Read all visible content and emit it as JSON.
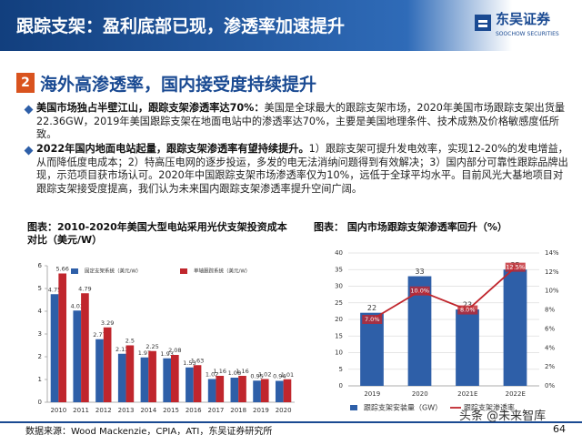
{
  "header": {
    "title": "跟踪支架：盈利底部已现，渗透率加速提升",
    "logo": "东吴证券",
    "logo_en": "SOOCHOW SECURITIES"
  },
  "section": {
    "number": "2",
    "title": "海外高渗透率，国内接受度持续提升"
  },
  "bullets": [
    {
      "bold": "美国市场独占半壁江山，跟踪支架渗透率达70%：",
      "text": "美国是全球最大的跟踪支架市场，2020年美国市场跟踪支架出货量22.36GW，2019年美国跟踪支架在地面电站中的渗透率达70%，主要是美国地理条件、技术成熟及价格敏感度低所致。"
    },
    {
      "bold": "2022年国内地面电站起量，跟踪支架渗透率有望持续提升。",
      "text": "1）跟踪支架可提升发电效率，实现12-20%的发电增益，从而降低度电成本；2）特高压电网的逐步投运，多发的电无法消纳问题得到有效解决；3）国内部分可靠性跟踪品牌出现，示范项目获市场认可。2020年中国跟踪支架市场渗透率仅为10%，远低于全球平均水平。目前风光大基地项目对跟踪支架接受度提高，我们认为未来国内跟踪支架渗透率提升空间广阔。"
    }
  ],
  "chart_data": [
    {
      "type": "bar",
      "title": "图表：2010-2020年美国大型电站采用光伏支架投资成本对比（美元/W）",
      "categories": [
        "2010",
        "2011",
        "2012",
        "2013",
        "2014",
        "2015",
        "2016",
        "2017",
        "2018",
        "2019",
        "2020"
      ],
      "series": [
        {
          "name": "固定支架系统（美元/W）",
          "color": "#2e5fa8",
          "values": [
            4.75,
            4.03,
            2.77,
            2.13,
            1.97,
            1.93,
            1.53,
            1.02,
            1.08,
            0.95,
            0.94
          ]
        },
        {
          "name": "单轴跟踪系统（美元/W）",
          "color": "#c0262d",
          "values": [
            5.66,
            4.79,
            3.29,
            2.5,
            2.25,
            2.08,
            1.63,
            1.16,
            1.16,
            1.02,
            1.01
          ]
        }
      ],
      "ylim": [
        0,
        6
      ],
      "yticks": [
        0,
        1,
        2,
        3,
        4,
        5,
        6
      ],
      "grid": false
    },
    {
      "type": "combo",
      "title": "图表： 国内市场跟踪支架渗透率回升（%）",
      "categories": [
        "2019",
        "2020",
        "2021E",
        "2022E"
      ],
      "series": [
        {
          "name": "跟踪支架安装量（GW）",
          "color": "#2e5fa8",
          "type": "bar",
          "values": [
            22,
            33,
            23,
            35
          ]
        },
        {
          "name": "跟踪支架渗透率",
          "color": "#c0262d",
          "type": "line",
          "axis": "y2",
          "values": [
            7.0,
            10.0,
            8.0,
            12.5
          ],
          "value_labels": [
            "7.0%",
            "10.0%",
            "8.0%",
            "12.5%"
          ]
        }
      ],
      "ylim": [
        0,
        40
      ],
      "yticks": [
        0,
        5,
        10,
        15,
        20,
        25,
        30,
        35,
        40
      ],
      "y2lim": [
        0,
        14
      ],
      "y2ticks": [
        {
          "value": 0,
          "label": "0%"
        },
        {
          "value": 2,
          "label": "2%"
        },
        {
          "value": 4,
          "label": "4%"
        },
        {
          "value": 6,
          "label": "6%"
        },
        {
          "value": 8,
          "label": "8%"
        },
        {
          "value": 10,
          "label": "10%"
        },
        {
          "value": 12,
          "label": "12%"
        },
        {
          "value": 14,
          "label": "14%"
        }
      ],
      "grid": true
    }
  ],
  "footer": {
    "source": "数据来源：Wood Mackenzie，CPIA，ATI，东吴证券研究所",
    "watermark": "头条 @未来智库",
    "page": "64"
  }
}
